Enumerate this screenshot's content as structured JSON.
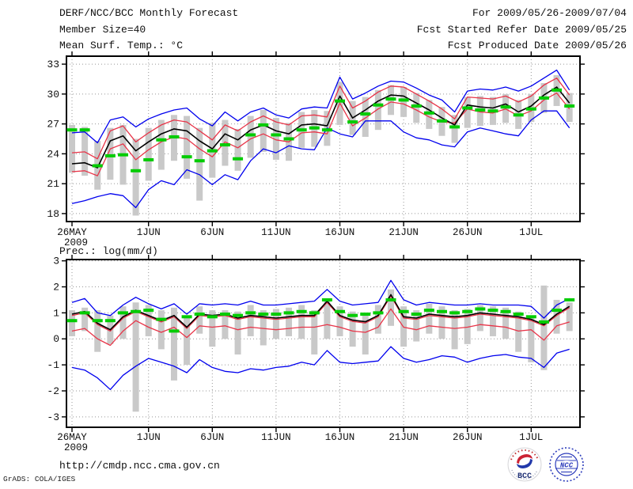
{
  "header": {
    "title": "DERF/NCC/BCC Monthly Forecast",
    "member_size": "Member Size=40",
    "period": "For 2009/05/26-2009/07/04",
    "refer_date": "Fcst Started Refer Date 2009/05/25",
    "produced_date": "Fcst Produced Date 2009/05/26"
  },
  "footer": {
    "url": "http://cmdp.ncc.cma.gov.cn",
    "credit": "GrADS: COLA/IGES",
    "bcc_logo_text": "BCC",
    "ncc_logo_text": "NCC"
  },
  "colors": {
    "ensemble_envelope": "#0000ee",
    "quartile": "#e83448",
    "mean": "#000000",
    "climatology": "#00cc00",
    "spread_bar": "#c9c9c9",
    "grid": "#979797",
    "frame": "#000000",
    "text": "#101010"
  },
  "chart_data": [
    {
      "type": "line",
      "title": "Mean Surf. Temp.: °C",
      "x_start": "2009/05/26",
      "x_end": "2009/07/04",
      "n_points": 40,
      "x_tick_positions": [
        0,
        6,
        11,
        16,
        21,
        26,
        31,
        36
      ],
      "x_tick_labels": [
        "26MAY",
        "1JUN",
        "6JUN",
        "11JUN",
        "16JUN",
        "21JUN",
        "26JUN",
        "1JUL"
      ],
      "x_first_tick_sublabel": "2009",
      "ylim": [
        17.2,
        33.8
      ],
      "yticks": [
        18,
        21,
        24,
        27,
        30,
        33
      ],
      "grid": true,
      "series": [
        {
          "name": "ensemble-max",
          "color_key": "ensemble_envelope",
          "values": [
            26.1,
            26.2,
            25.1,
            27.4,
            27.7,
            26.7,
            27.5,
            28.0,
            28.4,
            28.6,
            27.5,
            26.8,
            28.2,
            27.3,
            28.2,
            28.6,
            27.9,
            27.6,
            28.5,
            28.7,
            28.6,
            31.7,
            29.5,
            30.1,
            30.8,
            31.3,
            31.2,
            30.6,
            29.9,
            29.4,
            28.2,
            30.3,
            30.5,
            30.4,
            30.7,
            30.3,
            30.8,
            31.6,
            32.4,
            30.4
          ]
        },
        {
          "name": "ensemble-min",
          "color_key": "ensemble_envelope",
          "values": [
            19.0,
            19.3,
            19.7,
            20.0,
            19.8,
            18.6,
            20.4,
            21.3,
            20.9,
            22.4,
            21.9,
            20.9,
            21.9,
            21.4,
            23.3,
            24.5,
            24.1,
            24.8,
            24.5,
            24.4,
            26.6,
            26.0,
            25.7,
            27.3,
            27.3,
            27.3,
            26.2,
            25.6,
            25.4,
            24.9,
            24.7,
            26.2,
            26.6,
            26.3,
            26.0,
            25.8,
            27.4,
            28.3,
            28.3,
            26.6
          ]
        },
        {
          "name": "upper-quartile",
          "color_key": "quartile",
          "values": [
            24.1,
            24.2,
            23.5,
            26.3,
            26.8,
            25.2,
            26.1,
            26.9,
            27.4,
            27.2,
            26.3,
            25.4,
            26.9,
            26.3,
            27.2,
            27.8,
            27.2,
            26.9,
            27.8,
            27.9,
            27.7,
            30.8,
            28.6,
            29.3,
            30.2,
            30.8,
            30.7,
            30.0,
            29.3,
            28.5,
            27.5,
            29.7,
            29.6,
            29.5,
            29.8,
            29.2,
            29.8,
            30.9,
            31.6,
            29.9
          ]
        },
        {
          "name": "lower-quartile",
          "color_key": "quartile",
          "values": [
            22.2,
            22.3,
            21.8,
            24.5,
            25.0,
            23.4,
            24.4,
            25.2,
            25.7,
            25.5,
            24.5,
            23.7,
            25.2,
            24.6,
            25.5,
            26.0,
            25.4,
            25.2,
            26.1,
            26.2,
            26.0,
            29.1,
            26.8,
            27.6,
            28.5,
            29.2,
            29.0,
            28.4,
            27.7,
            27.2,
            27.1,
            28.5,
            28.2,
            28.1,
            28.5,
            27.8,
            28.3,
            29.4,
            30.1,
            28.5
          ]
        },
        {
          "name": "ensemble-mean",
          "color_key": "mean",
          "values": [
            23.0,
            23.1,
            22.6,
            25.3,
            25.8,
            24.3,
            25.2,
            26.0,
            26.5,
            26.3,
            25.3,
            24.5,
            26.0,
            25.4,
            26.4,
            26.9,
            26.3,
            26.0,
            26.9,
            27.0,
            26.8,
            29.8,
            27.6,
            28.4,
            29.3,
            29.9,
            29.8,
            29.1,
            28.4,
            27.6,
            26.9,
            28.9,
            28.7,
            28.6,
            29.0,
            28.2,
            28.8,
            29.9,
            30.7,
            29.1
          ]
        }
      ],
      "climatology_dashes": {
        "name": "climatology",
        "color_key": "climatology",
        "values": [
          26.4,
          26.4,
          22.8,
          23.8,
          23.9,
          22.3,
          23.4,
          25.4,
          25.7,
          23.7,
          23.3,
          24.3,
          24.9,
          23.5,
          25.9,
          26.9,
          25.9,
          25.5,
          26.4,
          26.6,
          26.4,
          29.3,
          27.2,
          28.0,
          28.9,
          29.5,
          29.4,
          28.8,
          28.1,
          27.3,
          26.7,
          28.6,
          28.4,
          28.3,
          28.7,
          27.9,
          28.5,
          29.6,
          30.4,
          28.8
        ]
      },
      "spread_bars": {
        "name": "ensemble-spread",
        "color_key": "spread_bar",
        "low": [
          22.1,
          21.8,
          20.4,
          21.4,
          20.9,
          17.8,
          21.3,
          22.4,
          23.3,
          21.5,
          19.3,
          21.6,
          22.8,
          22.3,
          23.6,
          24.2,
          23.4,
          23.3,
          24.6,
          24.7,
          24.8,
          26.9,
          25.9,
          25.7,
          26.4,
          27.9,
          27.7,
          27.1,
          26.5,
          25.8,
          25.1,
          26.6,
          26.8,
          26.9,
          27.1,
          26.5,
          27.2,
          28.1,
          28.8,
          27.2
        ],
        "high": [
          26.9,
          26.7,
          25.3,
          26.6,
          26.9,
          25.5,
          26.6,
          27.4,
          27.9,
          27.8,
          26.6,
          27.1,
          27.4,
          26.5,
          27.8,
          28.4,
          27.6,
          27.1,
          28.2,
          28.4,
          28.3,
          31.2,
          29.3,
          29.7,
          30.4,
          30.9,
          30.7,
          30.1,
          29.4,
          28.7,
          27.9,
          29.7,
          29.8,
          29.7,
          30.0,
          29.4,
          30.0,
          31.1,
          31.9,
          30.1
        ]
      }
    },
    {
      "type": "line",
      "title": "Prec.: log(mm/d)",
      "x_start": "2009/05/26",
      "x_end": "2009/07/04",
      "n_points": 40,
      "x_tick_positions": [
        0,
        6,
        11,
        16,
        21,
        26,
        31,
        36
      ],
      "x_tick_labels": [
        "26MAY",
        "1JUN",
        "6JUN",
        "11JUN",
        "16JUN",
        "21JUN",
        "26JUN",
        "1JUL"
      ],
      "x_first_tick_sublabel": "2009",
      "ylim": [
        -3.4,
        3.05
      ],
      "yticks": [
        -3,
        -2,
        -1,
        0,
        1,
        2,
        3
      ],
      "grid": true,
      "series": [
        {
          "name": "ensemble-max",
          "color_key": "ensemble_envelope",
          "values": [
            1.4,
            1.55,
            1.0,
            0.9,
            1.3,
            1.6,
            1.35,
            1.15,
            1.35,
            0.95,
            1.35,
            1.3,
            1.35,
            1.3,
            1.45,
            1.3,
            1.3,
            1.35,
            1.4,
            1.45,
            1.9,
            1.45,
            1.3,
            1.35,
            1.4,
            2.25,
            1.5,
            1.3,
            1.4,
            1.35,
            1.3,
            1.3,
            1.35,
            1.3,
            1.3,
            1.3,
            1.25,
            0.8,
            1.3,
            1.55
          ]
        },
        {
          "name": "ensemble-min",
          "color_key": "ensemble_envelope",
          "values": [
            -1.1,
            -1.2,
            -1.5,
            -1.95,
            -1.4,
            -1.05,
            -0.75,
            -0.9,
            -1.05,
            -1.3,
            -0.8,
            -1.1,
            -1.25,
            -1.3,
            -1.15,
            -1.2,
            -1.1,
            -1.05,
            -0.9,
            -1.0,
            -0.45,
            -0.9,
            -0.95,
            -0.9,
            -0.85,
            -0.3,
            -0.75,
            -0.9,
            -0.8,
            -0.65,
            -0.7,
            -0.9,
            -0.75,
            -0.65,
            -0.6,
            -0.7,
            -0.75,
            -1.1,
            -0.55,
            -0.4
          ]
        },
        {
          "name": "upper-quartile",
          "color_key": "quartile",
          "values": [
            0.9,
            1.0,
            0.55,
            0.3,
            0.8,
            1.05,
            0.85,
            0.65,
            0.85,
            0.4,
            0.9,
            0.85,
            0.9,
            0.75,
            0.85,
            0.8,
            0.75,
            0.8,
            0.85,
            0.85,
            1.4,
            0.85,
            0.67,
            0.61,
            0.85,
            1.65,
            0.8,
            0.75,
            0.9,
            0.85,
            0.8,
            0.85,
            0.95,
            0.9,
            0.85,
            0.8,
            0.7,
            0.5,
            0.9,
            1.2
          ]
        },
        {
          "name": "lower-quartile",
          "color_key": "quartile",
          "values": [
            0.3,
            0.4,
            0.0,
            -0.25,
            0.3,
            0.7,
            0.45,
            0.25,
            0.45,
            0.05,
            0.5,
            0.45,
            0.5,
            0.35,
            0.45,
            0.4,
            0.35,
            0.4,
            0.45,
            0.45,
            0.55,
            0.45,
            0.3,
            0.25,
            0.45,
            1.15,
            0.45,
            0.35,
            0.5,
            0.45,
            0.4,
            0.45,
            0.55,
            0.5,
            0.45,
            0.3,
            0.35,
            -0.05,
            0.5,
            0.65
          ]
        },
        {
          "name": "ensemble-mean",
          "color_key": "mean",
          "values": [
            0.95,
            1.05,
            0.6,
            0.35,
            0.85,
            1.1,
            0.9,
            0.7,
            0.9,
            0.45,
            0.95,
            0.9,
            0.95,
            0.8,
            0.9,
            0.85,
            0.8,
            0.85,
            0.9,
            0.9,
            1.45,
            0.9,
            0.72,
            0.66,
            0.9,
            1.7,
            0.85,
            0.8,
            0.95,
            0.9,
            0.85,
            0.9,
            1.0,
            0.95,
            0.9,
            0.85,
            0.75,
            0.55,
            0.95,
            1.25
          ]
        }
      ],
      "climatology_dashes": {
        "name": "climatology",
        "color_key": "climatology",
        "values": [
          0.7,
          1.0,
          0.7,
          0.7,
          1.0,
          1.05,
          1.1,
          0.75,
          0.3,
          0.85,
          0.95,
          0.85,
          0.95,
          0.9,
          1.0,
          0.95,
          0.95,
          1.0,
          1.05,
          1.0,
          1.5,
          1.05,
          0.9,
          0.95,
          1.0,
          1.5,
          1.05,
          0.95,
          1.1,
          1.05,
          1.0,
          1.05,
          1.15,
          1.1,
          1.05,
          0.95,
          0.85,
          0.65,
          1.1,
          1.5
        ]
      },
      "spread_bars": {
        "name": "ensemble-spread",
        "color_key": "spread_bar",
        "low": [
          0.1,
          0.3,
          -0.5,
          -0.2,
          0.0,
          -2.8,
          0.1,
          -0.4,
          -1.6,
          -1.0,
          0.2,
          -0.3,
          0.0,
          -0.6,
          0.1,
          -0.25,
          0.0,
          0.1,
          0.0,
          -0.6,
          0.0,
          0.1,
          -0.3,
          -0.6,
          0.2,
          0.5,
          -0.3,
          -0.1,
          0.2,
          0.0,
          -0.4,
          -0.2,
          0.3,
          0.1,
          0.0,
          -0.5,
          -0.9,
          -1.2,
          0.2,
          0.3
        ],
        "high": [
          1.1,
          1.2,
          1.1,
          0.9,
          1.25,
          1.4,
          1.3,
          1.1,
          1.2,
          0.9,
          1.25,
          1.1,
          1.1,
          1.05,
          1.3,
          1.1,
          1.15,
          1.2,
          1.3,
          1.1,
          1.5,
          1.25,
          1.05,
          0.95,
          1.3,
          1.9,
          1.25,
          1.1,
          1.35,
          1.25,
          1.1,
          1.15,
          1.3,
          1.25,
          1.2,
          1.05,
          0.9,
          2.05,
          1.5,
          1.4
        ]
      }
    }
  ]
}
